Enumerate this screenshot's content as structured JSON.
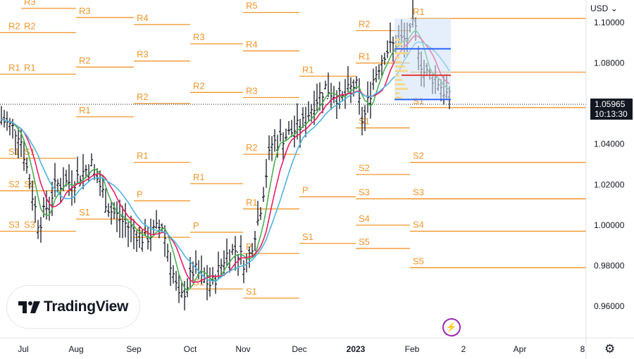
{
  "currency": "USD",
  "currency_icon": "chevron-down-icon",
  "last_price": "1.05965",
  "countdown": "10:13:30",
  "brand": "TradingView",
  "colors": {
    "pivot": "#f2962b",
    "candle": "#131722",
    "ma_fast": "#4caf50",
    "ma_mid": "#e91e63",
    "ma_slow": "#4fb3e0",
    "volume_profile": "#f5d88a",
    "zone": "#cfe2f8",
    "accent": "#9c27b0"
  },
  "y_ticks": [
    "1.10000",
    "1.08000",
    "1.06000",
    "1.04000",
    "1.02000",
    "1.00000",
    "0.98000",
    "0.96000"
  ],
  "x_ticks": [
    "Jul",
    "Aug",
    "Sep",
    "Oct",
    "Nov",
    "Dec",
    "2023",
    "Feb",
    "2",
    "Apr",
    "8"
  ],
  "chart_data": {
    "type": "candlestick",
    "symbol_currency": "USD",
    "ylim": [
      0.9455,
      1.1045
    ],
    "ytick_values": [
      1.1,
      1.08,
      1.06,
      1.04,
      1.02,
      1.0,
      0.98,
      0.96
    ],
    "last_price": 1.05965,
    "overlays": [
      "monthly pivot points (P, R1–R4, S1–S5)",
      "moving average (green)",
      "moving average (red)",
      "moving average (blue)",
      "volume profile"
    ],
    "pivot_levels": [
      {
        "period": "Jun 2022",
        "levels": [
          [
            "R3",
            1.107
          ],
          [
            "R2",
            1.095
          ],
          [
            "R1",
            1.0745
          ],
          [
            "S1",
            1.033
          ],
          [
            "S2",
            1.017
          ],
          [
            "S3",
            0.997
          ]
        ]
      },
      {
        "period": "Jul 2022",
        "levels": [
          [
            "R3",
            1.1025
          ],
          [
            "R2",
            1.078
          ],
          [
            "R1",
            1.0535
          ],
          [
            "S1",
            1.003
          ]
        ]
      },
      {
        "period": "Aug 2022",
        "levels": [
          [
            "R4",
            1.099
          ],
          [
            "R3",
            1.081
          ],
          [
            "R2",
            1.06
          ],
          [
            "R1",
            1.031
          ],
          [
            "P",
            1.012
          ],
          [
            "S1",
            0.994
          ]
        ]
      },
      {
        "period": "Sep 2022",
        "levels": [
          [
            "R4",
            1.1145
          ],
          [
            "R3",
            1.0895
          ],
          [
            "R2",
            1.0655
          ],
          [
            "R1",
            1.0205
          ],
          [
            "P",
            0.9965
          ],
          [
            "S1",
            0.9685
          ]
        ]
      },
      {
        "period": "Oct 2022",
        "levels": [
          [
            "R5",
            1.105
          ],
          [
            "R4",
            1.086
          ],
          [
            "R3",
            1.063
          ],
          [
            "R2",
            1.035
          ],
          [
            "R1",
            1.008
          ],
          [
            "P",
            0.986
          ],
          [
            "S1",
            0.964
          ]
        ]
      },
      {
        "period": "Nov 2022",
        "levels": [
          [
            "R1",
            1.0735
          ],
          [
            "P",
            1.014
          ],
          [
            "S1",
            0.991
          ]
        ]
      },
      {
        "period": "Dec 2022",
        "levels": [
          [
            "R2",
            1.096
          ],
          [
            "R1",
            1.08
          ],
          [
            "S1",
            1.048
          ],
          [
            "S2",
            1.025
          ],
          [
            "S3",
            1.013
          ],
          [
            "S4",
            1.0
          ],
          [
            "S5",
            0.9885
          ]
        ]
      },
      {
        "period": "Jan 2023",
        "levels": [
          [
            "R1",
            1.102
          ],
          [
            "S1",
            1.058
          ],
          [
            "S2",
            1.031
          ],
          [
            "S3",
            1.013
          ],
          [
            "S4",
            0.997
          ],
          [
            "S5",
            0.979
          ]
        ]
      }
    ]
  }
}
